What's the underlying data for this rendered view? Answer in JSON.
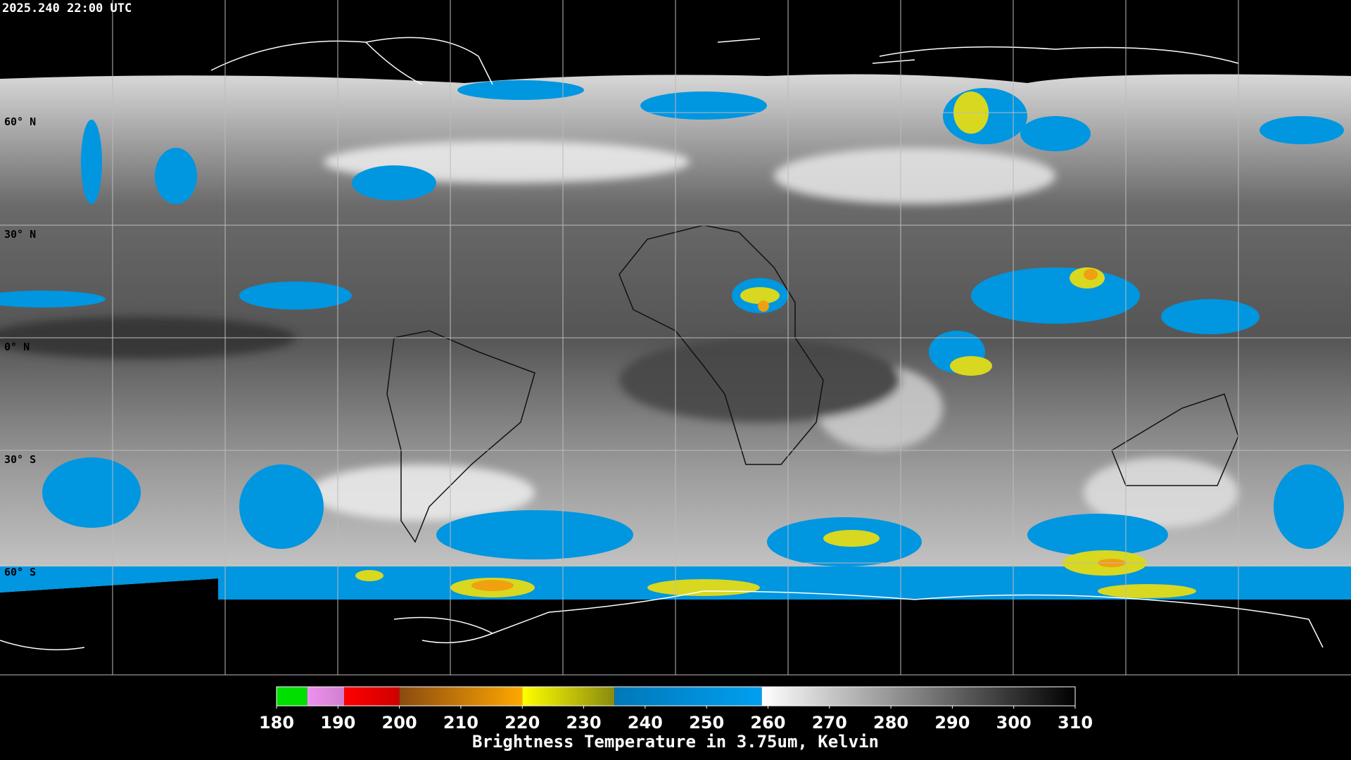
{
  "timestamp": "2025.240 22:00 UTC",
  "lat_labels": [
    "60° N",
    "30° N",
    "0° N",
    "30° S",
    "60° S"
  ],
  "colorbar": {
    "title": "Brightness Temperature in 3.75um, Kelvin",
    "xlim": [
      180,
      310
    ],
    "xticks": [
      180,
      190,
      200,
      210,
      220,
      230,
      240,
      250,
      260,
      270,
      280,
      290,
      300,
      310
    ],
    "stops": [
      {
        "from": 180,
        "to": 185,
        "colors": [
          "#00e000",
          "#00e000"
        ]
      },
      {
        "from": 185,
        "to": 191,
        "colors": [
          "#f090f0",
          "#d080d0"
        ]
      },
      {
        "from": 191,
        "to": 200,
        "colors": [
          "#ff0000",
          "#d00000"
        ]
      },
      {
        "from": 200,
        "to": 220,
        "colors": [
          "#8a4a10",
          "#ffa800"
        ]
      },
      {
        "from": 220,
        "to": 235,
        "colors": [
          "#ffff00",
          "#8a8a10"
        ]
      },
      {
        "from": 235,
        "to": 259,
        "colors": [
          "#0078b8",
          "#00a0f0"
        ]
      },
      {
        "from": 259,
        "to": 310,
        "colors": [
          "#ffffff",
          "#000000"
        ]
      }
    ]
  }
}
